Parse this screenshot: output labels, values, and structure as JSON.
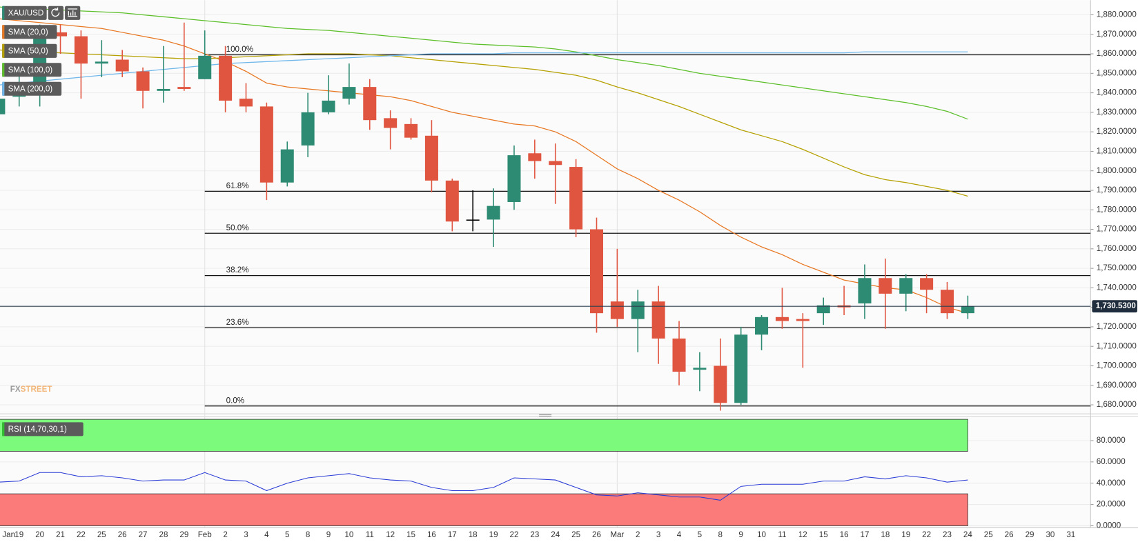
{
  "chart_data": [
    {
      "type": "candlestick",
      "symbol": "XAU/USD",
      "categories": [
        "Jan",
        "19",
        "20",
        "21",
        "22",
        "25",
        "26",
        "27",
        "28",
        "29",
        "Feb",
        "2",
        "3",
        "4",
        "5",
        "8",
        "9",
        "10",
        "11",
        "12",
        "15",
        "16",
        "17",
        "18",
        "19",
        "22",
        "23",
        "24",
        "25",
        "26",
        "Mar",
        "2",
        "3",
        "4",
        "5",
        "8",
        "9",
        "10",
        "11",
        "12",
        "15",
        "16",
        "17",
        "18",
        "19",
        "22",
        "23",
        "24",
        "25",
        "26",
        "29",
        "30",
        "31"
      ],
      "open": [
        1829,
        1838,
        1840,
        1871,
        1869,
        1855,
        1857,
        1851,
        1841,
        1843,
        1847,
        1859,
        1837,
        1833,
        1794,
        1813,
        1830,
        1837,
        1843,
        1827,
        1824,
        1818,
        1795,
        1775,
        1775,
        1784,
        1809,
        1805,
        1802,
        1770,
        1733,
        1724,
        1733,
        1714,
        1698,
        1700,
        1681,
        1716,
        1725,
        1724,
        1727,
        1731,
        1732,
        1745,
        1737,
        1745,
        1739,
        1727,
        null,
        null,
        null,
        null,
        null
      ],
      "high": [
        1840,
        1850,
        1875,
        1875,
        1872,
        1867,
        1862,
        1853,
        1864,
        1876,
        1872,
        1864,
        1845,
        1835,
        1815,
        1840,
        1849,
        1855,
        1847,
        1831,
        1827,
        1826,
        1796,
        1790,
        1791,
        1813,
        1816,
        1814,
        1806,
        1776,
        1760,
        1739,
        1741,
        1723,
        1707,
        1714,
        1720,
        1726,
        1740,
        1727,
        1735,
        1741,
        1752,
        1755,
        1747,
        1747,
        1743,
        1736,
        null,
        null,
        null,
        null,
        null
      ],
      "low": [
        1802,
        1833,
        1833,
        1860,
        1837,
        1848,
        1848,
        1832,
        1835,
        1841,
        1847,
        1830,
        1830,
        1785,
        1792,
        1807,
        1829,
        1834,
        1821,
        1811,
        1816,
        1789,
        1769,
        1769,
        1761,
        1780,
        1796,
        1783,
        1766,
        1717,
        1720,
        1707,
        1701,
        1690,
        1687,
        1677,
        1680,
        1708,
        1719,
        1699,
        1721,
        1726,
        1724,
        1719,
        1728,
        1727,
        1724,
        1724,
        null,
        null,
        null,
        null,
        null
      ],
      "close": [
        1837,
        1845,
        1871,
        1869,
        1855,
        1856,
        1851,
        1841,
        1842,
        1842,
        1859,
        1836,
        1833,
        1794,
        1811,
        1830,
        1836,
        1843,
        1826,
        1822,
        1817,
        1795,
        1774,
        1775,
        1782,
        1808,
        1805,
        1803,
        1770,
        1727,
        1724,
        1733,
        1714,
        1697,
        1699,
        1681,
        1716,
        1725,
        1723,
        1723,
        1731,
        1730,
        1745,
        1737,
        1745,
        1739,
        1727,
        1730.53,
        null,
        null,
        null,
        null,
        null
      ],
      "up_color": "#2e8b73",
      "down_color": "#e0553f",
      "flat_color": "#000000",
      "overlays": [
        {
          "name": "SMA (20,0)",
          "color": "#e87722",
          "values": [
            1878,
            1877,
            1876,
            1875,
            1874,
            1873,
            1871,
            1869,
            1867,
            1864,
            1860,
            1856,
            1851,
            1845,
            1843,
            1842,
            1841,
            1840,
            1839,
            1838,
            1836,
            1833,
            1830,
            1828,
            1826,
            1824,
            1823,
            1820,
            1815,
            1808,
            1801,
            1796,
            1790,
            1785,
            1779,
            1772,
            1766,
            1761,
            1757,
            1752,
            1748,
            1744,
            1742,
            1740,
            1739,
            1735,
            1730,
            1727,
            null,
            null,
            null,
            null,
            null
          ]
        },
        {
          "name": "SMA (50,0)",
          "color": "#b5a000",
          "values": [
            1862,
            1861.5,
            1861,
            1860.5,
            1860,
            1859.5,
            1859,
            1858.5,
            1858,
            1857.5,
            1857.5,
            1858,
            1858.5,
            1859,
            1859.5,
            1860,
            1860,
            1860,
            1859.5,
            1859,
            1858,
            1857,
            1856,
            1855,
            1854,
            1853,
            1852,
            1850.5,
            1849,
            1846.5,
            1843,
            1840,
            1836.5,
            1833,
            1829,
            1825,
            1821,
            1818,
            1815,
            1811,
            1806.5,
            1802,
            1798,
            1795.5,
            1794,
            1792,
            1790,
            1787,
            null,
            null,
            null,
            null,
            null
          ]
        },
        {
          "name": "SMA (100,0)",
          "color": "#5cbf2a",
          "values": [
            1884,
            1883.5,
            1883,
            1882.5,
            1882,
            1881.5,
            1881,
            1880,
            1879,
            1878,
            1877,
            1876,
            1875,
            1874,
            1873,
            1872.5,
            1872,
            1871,
            1870,
            1869,
            1868,
            1867,
            1866,
            1865,
            1864.5,
            1864,
            1863.5,
            1862.5,
            1861,
            1859,
            1857,
            1855.5,
            1854,
            1852,
            1850,
            1848.5,
            1847,
            1845.5,
            1844,
            1842.5,
            1841,
            1839.5,
            1838,
            1836.5,
            1835,
            1833,
            1830.5,
            1826.5,
            null,
            null,
            null,
            null,
            null
          ]
        },
        {
          "name": "SMA (200,0)",
          "color": "#6fb7ea",
          "values": [
            1844,
            1845,
            1846,
            1847,
            1848,
            1849,
            1850,
            1851,
            1852,
            1853,
            1854,
            1855,
            1855.5,
            1856,
            1856.5,
            1857,
            1857.5,
            1858,
            1858.5,
            1859,
            1859.5,
            1860,
            1860,
            1860,
            1860,
            1860.5,
            1860.5,
            1860.5,
            1860.5,
            1860.5,
            1860.5,
            1860.5,
            1860.5,
            1860.5,
            1860.5,
            1860.5,
            1860.5,
            1860.5,
            1860.5,
            1860.5,
            1860.5,
            1860.5,
            1861,
            1861,
            1861,
            1861,
            1861,
            1861,
            null,
            null,
            null,
            null,
            null
          ]
        }
      ],
      "fib_levels": [
        {
          "label": "100.0%",
          "price": 1859.5
        },
        {
          "label": "61.8%",
          "price": 1789.5
        },
        {
          "label": "50.0%",
          "price": 1768
        },
        {
          "label": "38.2%",
          "price": 1746.3
        },
        {
          "label": "23.6%",
          "price": 1719.5
        },
        {
          "label": "0.0%",
          "price": 1679.4
        }
      ],
      "last_price": {
        "value": 1730.53,
        "label": "1,730.5300"
      },
      "ylim": [
        1676.3,
        1884.5
      ],
      "yticks": [
        {
          "value": 1680,
          "label": "1,680.0000"
        },
        {
          "value": 1690,
          "label": "1,690.0000"
        },
        {
          "value": 1700,
          "label": "1,700.0000"
        },
        {
          "value": 1710,
          "label": "1,710.0000"
        },
        {
          "value": 1720,
          "label": "1,720.0000"
        },
        {
          "value": 1730,
          "label": "1,730.0000"
        },
        {
          "value": 1740,
          "label": "1,740.0000"
        },
        {
          "value": 1750,
          "label": "1,750.0000"
        },
        {
          "value": 1760,
          "label": "1,760.0000"
        },
        {
          "value": 1770,
          "label": "1,770.0000"
        },
        {
          "value": 1780,
          "label": "1,780.0000"
        },
        {
          "value": 1790,
          "label": "1,790.0000"
        },
        {
          "value": 1800,
          "label": "1,800.0000"
        },
        {
          "value": 1810,
          "label": "1,810.0000"
        },
        {
          "value": 1820,
          "label": "1,820.0000"
        },
        {
          "value": 1830,
          "label": "1,830.0000"
        },
        {
          "value": 1840,
          "label": "1,840.0000"
        },
        {
          "value": 1850,
          "label": "1,850.0000"
        },
        {
          "value": 1860,
          "label": "1,860.0000"
        },
        {
          "value": 1870,
          "label": "1,870.0000"
        },
        {
          "value": 1880,
          "label": "1,880.0000"
        }
      ],
      "grid": true,
      "watermark": [
        "FX",
        "STREET"
      ]
    },
    {
      "type": "line",
      "name": "RSI (14,70,30,1)",
      "color": "#2a3bd6",
      "values": [
        41,
        42,
        50,
        50,
        46,
        47,
        45,
        42,
        43,
        43,
        50,
        43,
        42,
        33,
        40,
        45,
        47,
        49,
        45,
        43,
        42,
        36,
        33,
        33,
        36,
        45,
        44,
        43,
        36,
        29,
        28,
        31,
        29,
        27,
        27,
        24,
        37,
        39,
        39,
        39,
        42,
        42,
        46,
        44,
        47,
        45,
        41,
        43,
        null,
        null,
        null,
        null,
        null
      ],
      "bands": [
        {
          "from": 70,
          "to": 100,
          "color": "#7cfa7c"
        },
        {
          "from": 0,
          "to": 30,
          "color": "#fb7b7b"
        }
      ],
      "ylim": [
        0,
        100
      ],
      "yticks": [
        {
          "value": 0,
          "label": "0.0000"
        },
        {
          "value": 20,
          "label": "20.0000"
        },
        {
          "value": 40,
          "label": "40.0000"
        },
        {
          "value": 60,
          "label": "60.0000"
        },
        {
          "value": 80,
          "label": "80.0000"
        }
      ],
      "grid": true
    }
  ]
}
